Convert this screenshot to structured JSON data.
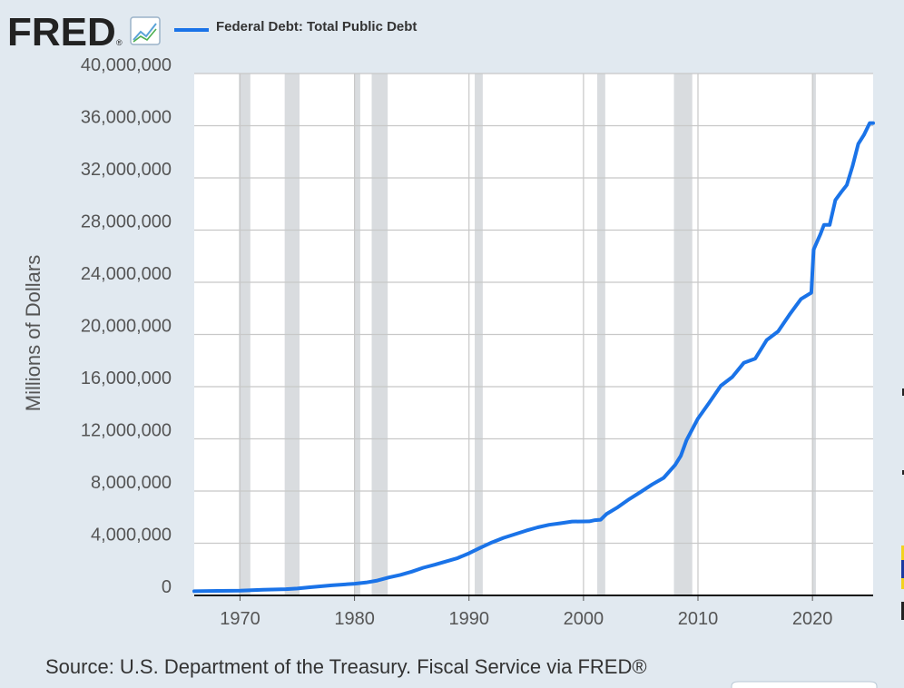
{
  "header": {
    "brand": "FRED",
    "brand_mark": "®",
    "logo_icon": "trend-line-chart-icon"
  },
  "colors": {
    "background": "#e1e9f0",
    "plot_bg": "#ffffff",
    "series": "#1a73e8",
    "recession": "#d9dcdf",
    "grid": "#c8c8c8",
    "text": "#555555"
  },
  "chart_data": {
    "type": "line",
    "title": "",
    "legend": [
      "Federal Debt: Total Public Debt"
    ],
    "legend_position": "top-left",
    "xlabel": "",
    "ylabel": "Millions of Dollars",
    "xlim": [
      1966,
      2025.3
    ],
    "ylim": [
      0,
      40000000
    ],
    "x_ticks": [
      1970,
      1980,
      1990,
      2000,
      2010,
      2020
    ],
    "x_tick_labels": [
      "1970",
      "1980",
      "1990",
      "2000",
      "2010",
      "2020"
    ],
    "y_ticks": [
      0,
      4000000,
      8000000,
      12000000,
      16000000,
      20000000,
      24000000,
      28000000,
      32000000,
      36000000,
      40000000
    ],
    "y_tick_labels": [
      "0",
      "4,000,000",
      "8,000,000",
      "12,000,000",
      "16,000,000",
      "20,000,000",
      "24,000,000",
      "28,000,000",
      "32,000,000",
      "36,000,000",
      "40,000,000"
    ],
    "grid": true,
    "recessions": [
      [
        1969.9,
        1970.9
      ],
      [
        1973.9,
        1975.2
      ],
      [
        1980.0,
        1980.5
      ],
      [
        1981.5,
        1982.9
      ],
      [
        1990.5,
        1991.2
      ],
      [
        2001.2,
        2001.9
      ],
      [
        2007.9,
        2009.5
      ],
      [
        2020.0,
        2020.3
      ]
    ],
    "series": [
      {
        "name": "Federal Debt: Total Public Debt",
        "x": [
          1966,
          1968,
          1970,
          1972,
          1974,
          1975,
          1976,
          1978,
          1980,
          1981,
          1982,
          1983,
          1984,
          1985,
          1986,
          1987,
          1988,
          1989,
          1990,
          1991,
          1992,
          1993,
          1994,
          1995,
          1996,
          1997,
          1998,
          1999,
          2000,
          2000.5,
          2001,
          2001.5,
          2002,
          2003,
          2004,
          2005,
          2006,
          2007,
          2008,
          2008.5,
          2009,
          2010,
          2011,
          2012,
          2013,
          2014,
          2015,
          2016,
          2017,
          2018,
          2019,
          2019.9,
          2020.1,
          2020.3,
          2020.7,
          2021,
          2021.5,
          2022,
          2022.5,
          2023,
          2023.5,
          2024,
          2024.5,
          2025,
          2025.3
        ],
        "y": [
          320000,
          350000,
          370000,
          430000,
          480000,
          530000,
          620000,
          770000,
          900000,
          990000,
          1140000,
          1380000,
          1570000,
          1820000,
          2120000,
          2350000,
          2600000,
          2860000,
          3230000,
          3660000,
          4060000,
          4410000,
          4690000,
          4970000,
          5220000,
          5410000,
          5530000,
          5660000,
          5670000,
          5680000,
          5770000,
          5800000,
          6230000,
          6760000,
          7380000,
          7930000,
          8510000,
          9010000,
          10000000,
          10700000,
          11900000,
          13560000,
          14790000,
          16070000,
          16740000,
          17820000,
          18150000,
          19570000,
          20240000,
          21520000,
          22720000,
          23200000,
          26500000,
          26900000,
          27700000,
          28400000,
          28400000,
          30300000,
          30900000,
          31460000,
          32900000,
          34600000,
          35300000,
          36200000,
          36200000
        ]
      }
    ]
  },
  "footer": {
    "source": "Source: U.S. Department of the Treasury. Fiscal Service via FRED®"
  }
}
